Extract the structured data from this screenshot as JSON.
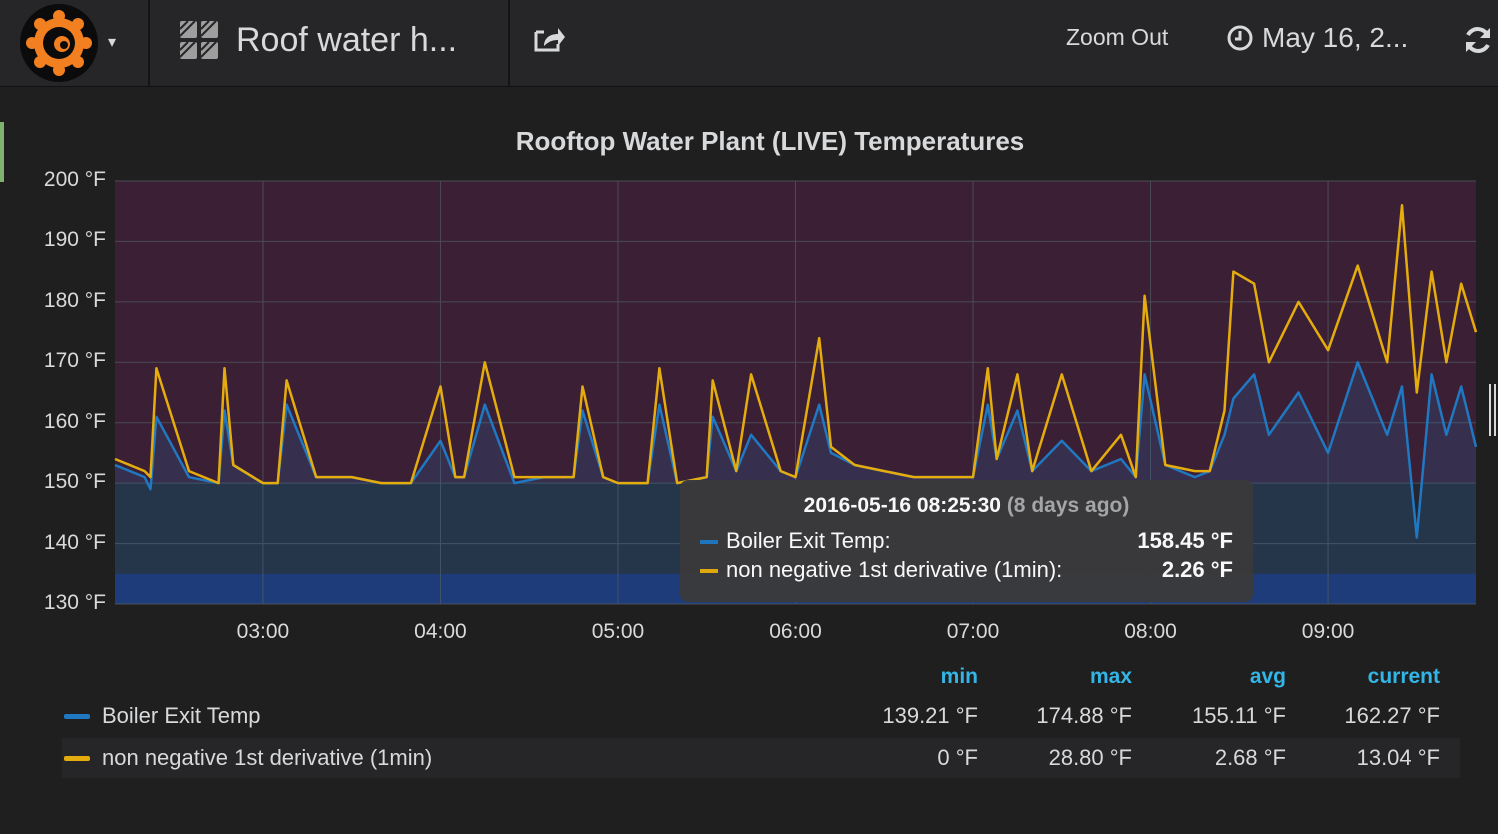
{
  "header": {
    "dashboard_title": "Roof water h...",
    "zoom_out_label": "Zoom Out",
    "time_range_label": "May 16, 2..."
  },
  "icons": {
    "logo": "grafana-logo-icon",
    "caret": "caret-down-icon",
    "dashboards": "dashboard-grid-icon",
    "share": "share-icon",
    "clock": "clock-icon",
    "refresh": "refresh-icon"
  },
  "colors": {
    "boiler": "#1f78c1",
    "derivative": "#e5ac0e",
    "accent": "#33b5e5",
    "upper_threshold_fill": "#3b1f34",
    "lower_threshold_fill": "#1f2f6b"
  },
  "panel": {
    "title": "Rooftop Water Plant (LIVE) Temperatures"
  },
  "chart_data": {
    "type": "line",
    "title": "Rooftop Water Plant (LIVE) Temperatures",
    "y_ticks": [
      "200 °F",
      "190 °F",
      "180 °F",
      "170 °F",
      "160 °F",
      "150 °F",
      "140 °F",
      "130 °F"
    ],
    "x_ticks": [
      "03:00",
      "04:00",
      "05:00",
      "06:00",
      "07:00",
      "08:00",
      "09:00"
    ],
    "ylim": [
      130,
      200
    ],
    "xlim": [
      "02:10",
      "09:50"
    ],
    "grid": true,
    "thresholds": [
      {
        "type": "above",
        "value": 150
      },
      {
        "type": "below",
        "value": 135
      }
    ],
    "series": [
      {
        "name": "Boiler Exit Temp",
        "x": [
          "02:10",
          "02:20",
          "02:22",
          "02:24",
          "02:35",
          "02:45",
          "02:47",
          "02:50",
          "03:00",
          "03:05",
          "03:08",
          "03:18",
          "03:30",
          "03:40",
          "03:50",
          "04:00",
          "04:05",
          "04:08",
          "04:15",
          "04:25",
          "04:35",
          "04:45",
          "04:48",
          "04:55",
          "05:00",
          "05:10",
          "05:14",
          "05:20",
          "05:30",
          "05:32",
          "05:40",
          "05:45",
          "05:55",
          "06:00",
          "06:08",
          "06:12",
          "06:20",
          "06:30",
          "06:40",
          "06:55",
          "07:00",
          "07:05",
          "07:08",
          "07:15",
          "07:20",
          "07:30",
          "07:40",
          "07:50",
          "07:55",
          "07:58",
          "08:05",
          "08:15",
          "08:20",
          "08:25",
          "08:28",
          "08:35",
          "08:40",
          "08:50",
          "09:00",
          "09:10",
          "09:20",
          "09:25",
          "09:30",
          "09:35",
          "09:40",
          "09:45",
          "09:50"
        ],
        "values": [
          153,
          151,
          149,
          161,
          151,
          150,
          162,
          153,
          150,
          150,
          163,
          151,
          151,
          150,
          150,
          157,
          151,
          151,
          163,
          150,
          151,
          151,
          162,
          151,
          150,
          150,
          163,
          150,
          151,
          161,
          152,
          158,
          152,
          151,
          163,
          155,
          153,
          152,
          151,
          151,
          151,
          163,
          154,
          162,
          152,
          157,
          152,
          154,
          151,
          168,
          153,
          151,
          152,
          158,
          164,
          168,
          158,
          165,
          155,
          170,
          158,
          166,
          141,
          168,
          158,
          166,
          156
        ]
      },
      {
        "name": "non negative 1st derivative (1min)",
        "x": [
          "02:10",
          "02:20",
          "02:22",
          "02:24",
          "02:35",
          "02:45",
          "02:47",
          "02:50",
          "03:00",
          "03:05",
          "03:08",
          "03:18",
          "03:30",
          "03:40",
          "03:50",
          "04:00",
          "04:05",
          "04:08",
          "04:15",
          "04:25",
          "04:35",
          "04:45",
          "04:48",
          "04:55",
          "05:00",
          "05:10",
          "05:14",
          "05:20",
          "05:30",
          "05:32",
          "05:40",
          "05:45",
          "05:55",
          "06:00",
          "06:08",
          "06:12",
          "06:20",
          "06:30",
          "06:40",
          "06:55",
          "07:00",
          "07:05",
          "07:08",
          "07:15",
          "07:20",
          "07:30",
          "07:40",
          "07:50",
          "07:55",
          "07:58",
          "08:05",
          "08:15",
          "08:20",
          "08:25",
          "08:28",
          "08:35",
          "08:40",
          "08:50",
          "09:00",
          "09:10",
          "09:20",
          "09:25",
          "09:30",
          "09:35",
          "09:40",
          "09:45",
          "09:50"
        ],
        "values": [
          154,
          152,
          151,
          169,
          152,
          150,
          169,
          153,
          150,
          150,
          167,
          151,
          151,
          150,
          150,
          166,
          151,
          151,
          170,
          151,
          151,
          151,
          166,
          151,
          150,
          150,
          169,
          150,
          151,
          167,
          152,
          168,
          152,
          151,
          174,
          156,
          153,
          152,
          151,
          151,
          151,
          169,
          154,
          168,
          152,
          168,
          152,
          158,
          151,
          181,
          153,
          152,
          152,
          162,
          185,
          183,
          170,
          180,
          172,
          186,
          170,
          196,
          165,
          185,
          170,
          183,
          175
        ]
      }
    ]
  },
  "tooltip": {
    "time": "2016-05-16 08:25:30",
    "relative": "(8 days ago)",
    "rows": [
      {
        "name": "Boiler Exit Temp:",
        "value": "158.45 °F"
      },
      {
        "name": "non negative 1st derivative (1min):",
        "value": "2.26 °F"
      }
    ]
  },
  "legend": {
    "headers": {
      "min": "min",
      "max": "max",
      "avg": "avg",
      "current": "current"
    },
    "rows": [
      {
        "name": "Boiler Exit Temp",
        "min": "139.21 °F",
        "max": "174.88 °F",
        "avg": "155.11 °F",
        "current": "162.27 °F"
      },
      {
        "name": "non negative 1st derivative (1min)",
        "min": "0 °F",
        "max": "28.80 °F",
        "avg": "2.68 °F",
        "current": "13.04 °F"
      }
    ]
  }
}
